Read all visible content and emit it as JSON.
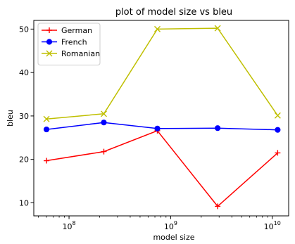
{
  "chart_data": {
    "type": "line",
    "title": "plot of model size vs bleu",
    "xlabel": "model size",
    "ylabel": "bleu",
    "xscale": "log",
    "xlim": [
      45000000,
      14500000000
    ],
    "ylim": [
      7,
      52
    ],
    "x": [
      60000000,
      220000000,
      740000000,
      2900000000,
      11300000000
    ],
    "xticks": [
      {
        "value": 100000000,
        "base": "10",
        "exp": "8"
      },
      {
        "value": 1000000000,
        "base": "10",
        "exp": "9"
      },
      {
        "value": 10000000000,
        "base": "10",
        "exp": "10"
      }
    ],
    "yticks": [
      "10",
      "20",
      "30",
      "40",
      "50"
    ],
    "legend_position": "top-left",
    "grid": false,
    "series": [
      {
        "name": "German",
        "color": "#ff0000",
        "marker": "plus",
        "values": [
          19.7,
          21.8,
          26.6,
          9.2,
          21.5
        ]
      },
      {
        "name": "French",
        "color": "#0000ff",
        "marker": "circle",
        "values": [
          26.9,
          28.5,
          27.1,
          27.2,
          26.8
        ]
      },
      {
        "name": "Romanian",
        "color": "#bfbf00",
        "marker": "x",
        "values": [
          29.3,
          30.5,
          50.0,
          50.2,
          30.1
        ]
      }
    ]
  }
}
